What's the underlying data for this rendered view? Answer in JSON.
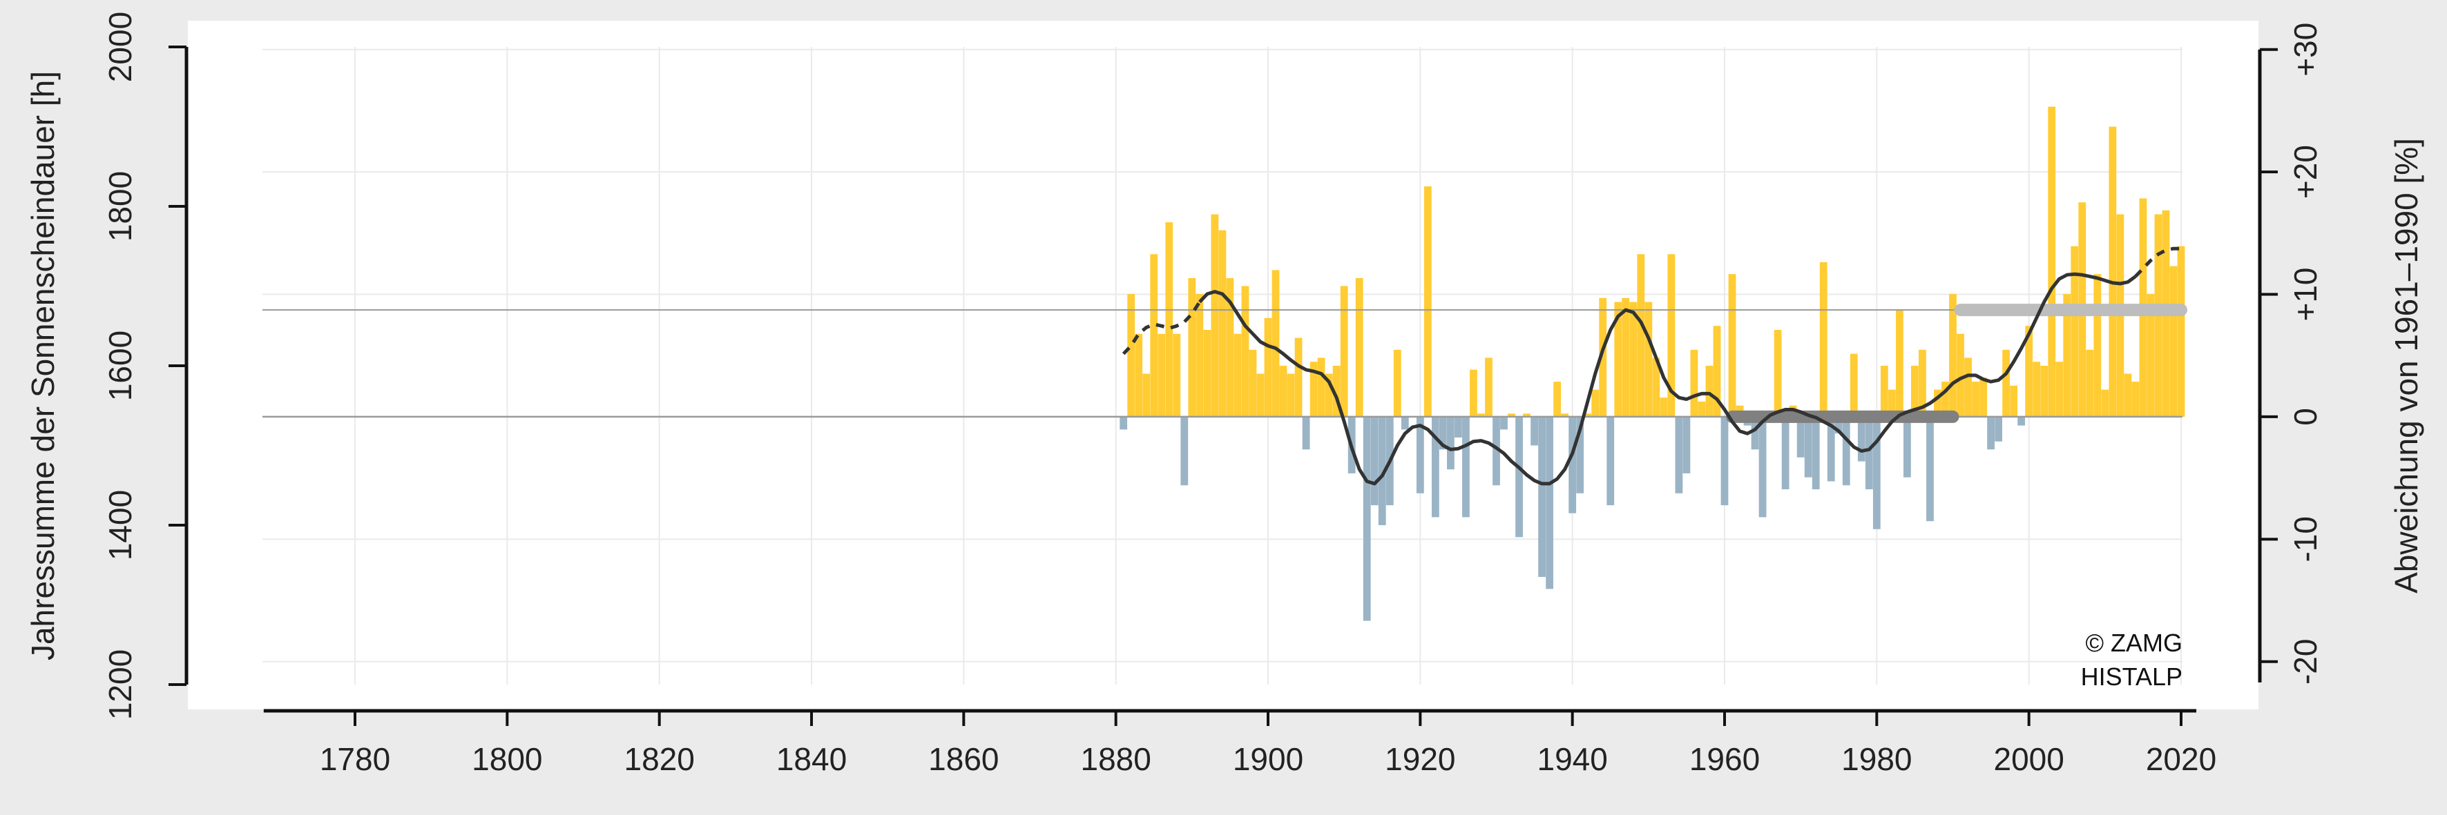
{
  "chart_data": {
    "type": "bar",
    "ylabel_left": "Jahressumme der Sonnenscheindauer [h]",
    "ylabel_right": "Abweichung von 1961–1990 [%]",
    "xlim": [
      1768,
      2022
    ],
    "ylim_left": [
      1200,
      2000
    ],
    "ylim_right_percent": [
      -21.7,
      30.4
    ],
    "reference_mean_1961_1990_h": 1536,
    "x_ticks": [
      1780,
      1800,
      1820,
      1840,
      1860,
      1880,
      1900,
      1920,
      1940,
      1960,
      1980,
      2000,
      2020
    ],
    "y_ticks_left": [
      1200,
      1400,
      1600,
      1800,
      2000
    ],
    "y_ticks_right": [
      "-20",
      "-10",
      "0",
      "+10",
      "+20",
      "+30"
    ],
    "y_ticks_right_values": [
      -20,
      -10,
      0,
      10,
      20,
      30
    ],
    "grid": true,
    "colors": {
      "positive": "#ffcc33",
      "negative": "#9ab4c6",
      "smooth": "#333333",
      "period_1961_1990": "#808080",
      "period_1991_2020": "#bdbdbd",
      "ref_lines": "#9a9a9a",
      "plot_bg": "#ffffff",
      "page_bg": "#ebebeb",
      "grid": "#eaeaea"
    },
    "years": [
      1881,
      1882,
      1883,
      1884,
      1885,
      1886,
      1887,
      1888,
      1889,
      1890,
      1891,
      1892,
      1893,
      1894,
      1895,
      1896,
      1897,
      1898,
      1899,
      1900,
      1901,
      1902,
      1903,
      1904,
      1905,
      1906,
      1907,
      1908,
      1909,
      1910,
      1911,
      1912,
      1913,
      1914,
      1915,
      1916,
      1917,
      1918,
      1919,
      1920,
      1921,
      1922,
      1923,
      1924,
      1925,
      1926,
      1927,
      1928,
      1929,
      1930,
      1931,
      1932,
      1933,
      1934,
      1935,
      1936,
      1937,
      1938,
      1939,
      1940,
      1941,
      1942,
      1943,
      1944,
      1945,
      1946,
      1947,
      1948,
      1949,
      1950,
      1951,
      1952,
      1953,
      1954,
      1955,
      1956,
      1957,
      1958,
      1959,
      1960,
      1961,
      1962,
      1963,
      1964,
      1965,
      1966,
      1967,
      1968,
      1969,
      1970,
      1971,
      1972,
      1973,
      1974,
      1975,
      1976,
      1977,
      1978,
      1979,
      1980,
      1981,
      1982,
      1983,
      1984,
      1985,
      1986,
      1987,
      1988,
      1989,
      1990,
      1991,
      1992,
      1993,
      1994,
      1995,
      1996,
      1997,
      1998,
      1999,
      2000,
      2001,
      2002,
      2003,
      2004,
      2005,
      2006,
      2007,
      2008,
      2009,
      2010,
      2011,
      2012,
      2013,
      2014,
      2015,
      2016,
      2017,
      2018,
      2019,
      2020
    ],
    "values_h": [
      1520,
      1690,
      1640,
      1590,
      1740,
      1640,
      1780,
      1640,
      1450,
      1710,
      1690,
      1645,
      1790,
      1770,
      1710,
      1640,
      1700,
      1620,
      1590,
      1660,
      1720,
      1600,
      1590,
      1635,
      1495,
      1605,
      1610,
      1590,
      1600,
      1700,
      1465,
      1710,
      1280,
      1425,
      1400,
      1425,
      1620,
      1520,
      1535,
      1440,
      1825,
      1410,
      1495,
      1470,
      1510,
      1410,
      1595,
      1540,
      1610,
      1450,
      1520,
      1540,
      1385,
      1540,
      1500,
      1335,
      1320,
      1580,
      1540,
      1415,
      1440,
      1540,
      1570,
      1685,
      1425,
      1680,
      1685,
      1680,
      1740,
      1680,
      1610,
      1560,
      1740,
      1440,
      1465,
      1620,
      1555,
      1600,
      1650,
      1425,
      1715,
      1550,
      1525,
      1495,
      1410,
      1535,
      1645,
      1445,
      1550,
      1485,
      1460,
      1445,
      1730,
      1455,
      1515,
      1450,
      1615,
      1480,
      1445,
      1395,
      1600,
      1570,
      1670,
      1460,
      1600,
      1620,
      1405,
      1570,
      1580,
      1690,
      1640,
      1610,
      1580,
      1585,
      1495,
      1505,
      1620,
      1575,
      1525,
      1650,
      1605,
      1600,
      1925,
      1605,
      1690,
      1750,
      1805,
      1620,
      1715,
      1570,
      1900,
      1790,
      1590,
      1580,
      1810,
      1690,
      1790,
      1795,
      1725,
      1750
    ],
    "smooth_h": [
      1615,
      1625,
      1640,
      1648,
      1652,
      1650,
      1647,
      1650,
      1655,
      1665,
      1680,
      1690,
      1693,
      1690,
      1680,
      1665,
      1650,
      1640,
      1630,
      1625,
      1622,
      1615,
      1607,
      1600,
      1595,
      1593,
      1590,
      1580,
      1560,
      1530,
      1497,
      1470,
      1455,
      1452,
      1462,
      1480,
      1500,
      1515,
      1523,
      1525,
      1520,
      1510,
      1500,
      1495,
      1496,
      1500,
      1505,
      1506,
      1503,
      1497,
      1490,
      1480,
      1472,
      1463,
      1456,
      1452,
      1452,
      1458,
      1470,
      1490,
      1520,
      1555,
      1590,
      1620,
      1645,
      1662,
      1670,
      1667,
      1655,
      1635,
      1610,
      1585,
      1568,
      1560,
      1558,
      1562,
      1565,
      1565,
      1558,
      1545,
      1530,
      1518,
      1515,
      1520,
      1530,
      1538,
      1542,
      1545,
      1545,
      1542,
      1538,
      1535,
      1530,
      1525,
      1518,
      1508,
      1498,
      1493,
      1495,
      1505,
      1518,
      1530,
      1538,
      1542,
      1545,
      1548,
      1553,
      1560,
      1568,
      1578,
      1584,
      1588,
      1588,
      1583,
      1580,
      1582,
      1590,
      1605,
      1622,
      1640,
      1660,
      1680,
      1697,
      1709,
      1714,
      1715,
      1714,
      1712,
      1710,
      1707,
      1704,
      1703,
      1705,
      1712,
      1722,
      1732,
      1740,
      1745,
      1747,
      1747
    ],
    "smooth_dashed_ranges": [
      [
        1881,
        1890
      ],
      [
        2014,
        2020
      ]
    ],
    "reference_periods": [
      {
        "label": "1961–1990",
        "start": 1961,
        "end": 1990,
        "value_h": 1536
      },
      {
        "label": "1991–2020",
        "start": 1991,
        "end": 2020,
        "value_h": 1670
      }
    ]
  },
  "credit": {
    "line1": "© ZAMG",
    "line2": "HISTALP"
  }
}
